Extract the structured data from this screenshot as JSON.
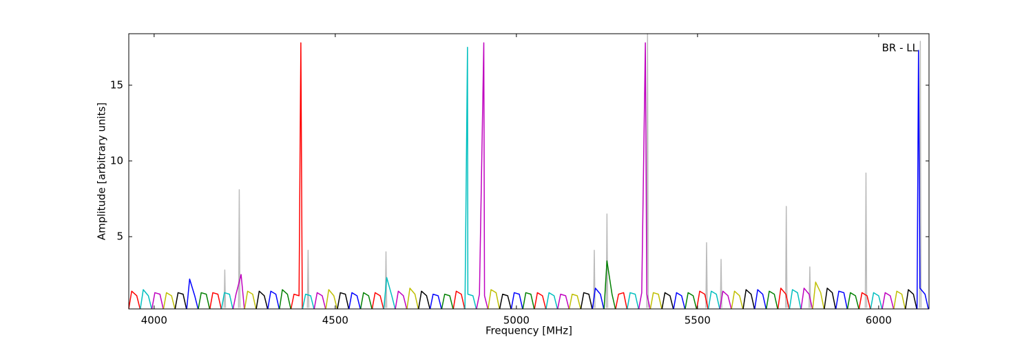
{
  "chart_data": {
    "type": "line",
    "xlabel": "Frequency [MHz]",
    "ylabel": "Amplitude [arbitrary units]",
    "annotation": "BR - LL",
    "xlim": [
      3930,
      6139
    ],
    "ylim": [
      0.23,
      18.4
    ],
    "xticks": [
      4000,
      4500,
      5000,
      5500,
      6000
    ],
    "yticks": [
      5,
      10,
      15
    ],
    "grid": false,
    "series": [
      {
        "color": "#bbbbbb",
        "x": [
          4193,
          4195,
          4197,
          null,
          4233,
          4235,
          4237,
          null,
          4423,
          4425,
          4427,
          null,
          4638,
          4640,
          4642,
          null,
          5213,
          5215,
          5217,
          null,
          5248,
          5250,
          5252,
          null,
          5360,
          5362,
          5364,
          null,
          5523,
          5525,
          5527,
          null,
          5563,
          5565,
          5567,
          null,
          5743,
          5745,
          5747,
          null,
          5808,
          5810,
          5812,
          null,
          5963,
          5965,
          5967,
          null,
          6113,
          6115,
          6117
        ],
        "values": [
          0.3,
          2.8,
          0.3,
          null,
          0.3,
          8.1,
          0.3,
          null,
          0.3,
          4.1,
          0.3,
          null,
          0.3,
          4.0,
          0.3,
          null,
          0.3,
          4.1,
          0.3,
          null,
          0.3,
          6.5,
          0.3,
          null,
          0.3,
          18.4,
          0.3,
          null,
          0.3,
          4.6,
          0.3,
          null,
          0.3,
          3.5,
          0.3,
          null,
          0.3,
          7.0,
          0.3,
          null,
          0.3,
          3.0,
          0.3,
          null,
          0.3,
          9.2,
          0.3,
          null,
          0.3,
          17.9,
          0.3
        ]
      },
      {
        "color": "#ff0000",
        "x": [
          3930,
          3938,
          3952,
          3961,
          null,
          4154,
          4162,
          4176,
          4185,
          null,
          4378,
          4386,
          4400,
          4405,
          4409,
          null,
          4602,
          4610,
          4624,
          4633,
          null,
          4826,
          4834,
          4848,
          4857,
          null,
          5050,
          5058,
          5072,
          5081,
          null,
          5274,
          5282,
          5296,
          5305,
          null,
          5498,
          5506,
          5520,
          5529,
          null,
          5722,
          5730,
          5744,
          5753,
          null,
          5946,
          5954,
          5968,
          5977
        ],
        "values": [
          0.25,
          1.4,
          1.1,
          0.25,
          null,
          0.25,
          1.3,
          1.2,
          0.25,
          null,
          0.25,
          1.2,
          1.1,
          17.8,
          0.25,
          null,
          0.25,
          1.3,
          1.1,
          0.25,
          null,
          0.25,
          1.4,
          1.2,
          0.25,
          null,
          0.25,
          1.3,
          1.1,
          0.25,
          null,
          0.25,
          1.2,
          1.3,
          0.25,
          null,
          0.25,
          1.4,
          1.2,
          0.25,
          null,
          0.25,
          1.6,
          1.2,
          0.25,
          null,
          0.25,
          1.3,
          1.1,
          0.25
        ]
      },
      {
        "color": "#00bfbf",
        "x": [
          3962,
          3970,
          3984,
          3993,
          null,
          4186,
          4194,
          4208,
          4217,
          null,
          4410,
          4418,
          4432,
          4441,
          null,
          4634,
          4642,
          4656,
          4665,
          null,
          4858,
          4865,
          4866,
          4880,
          4889,
          null,
          5082,
          5090,
          5104,
          5113,
          null,
          5306,
          5314,
          5328,
          5337,
          null,
          5530,
          5538,
          5552,
          5561,
          null,
          5754,
          5762,
          5776,
          5785,
          null,
          5978,
          5986,
          6000,
          6009
        ],
        "values": [
          0.25,
          1.5,
          1.1,
          0.25,
          null,
          0.25,
          1.3,
          1.2,
          0.25,
          null,
          0.25,
          1.2,
          1.1,
          0.25,
          null,
          0.25,
          2.3,
          1.1,
          0.25,
          null,
          0.25,
          17.5,
          1.2,
          1.1,
          0.25,
          null,
          0.25,
          1.3,
          1.1,
          0.25,
          null,
          0.25,
          1.3,
          1.2,
          0.25,
          null,
          0.25,
          1.4,
          1.2,
          0.25,
          null,
          0.25,
          1.5,
          1.3,
          0.25,
          null,
          0.25,
          1.3,
          1.1,
          0.25
        ]
      },
      {
        "color": "#bf00bf",
        "x": [
          3994,
          4002,
          4016,
          4025,
          null,
          4218,
          4226,
          4240,
          4249,
          null,
          4442,
          4450,
          4464,
          4473,
          null,
          4666,
          4674,
          4688,
          4697,
          null,
          4890,
          4898,
          4910,
          4912,
          4921,
          null,
          5114,
          5122,
          5136,
          5145,
          null,
          5338,
          5346,
          5356,
          5360,
          5369,
          null,
          5562,
          5570,
          5584,
          5593,
          null,
          5786,
          5794,
          5808,
          5817,
          null,
          6010,
          6018,
          6032,
          6041
        ],
        "values": [
          0.25,
          1.3,
          1.2,
          0.25,
          null,
          0.25,
          1.2,
          2.5,
          0.25,
          null,
          0.25,
          1.3,
          1.1,
          0.25,
          null,
          0.25,
          1.4,
          1.1,
          0.25,
          null,
          0.25,
          1.2,
          17.8,
          1.1,
          0.25,
          null,
          0.25,
          1.2,
          1.1,
          0.25,
          null,
          0.25,
          1.3,
          17.8,
          1.2,
          0.25,
          null,
          0.25,
          1.4,
          1.1,
          0.25,
          null,
          0.25,
          1.6,
          1.2,
          0.25,
          null,
          0.25,
          1.3,
          1.1,
          0.25
        ]
      },
      {
        "color": "#bfbf00",
        "x": [
          4026,
          4034,
          4048,
          4057,
          null,
          4250,
          4258,
          4272,
          4281,
          null,
          4474,
          4482,
          4496,
          4505,
          null,
          4698,
          4706,
          4720,
          4729,
          null,
          4922,
          4930,
          4944,
          4953,
          null,
          5146,
          5154,
          5168,
          5177,
          null,
          5370,
          5378,
          5392,
          5401,
          null,
          5594,
          5602,
          5616,
          5625,
          null,
          5818,
          5826,
          5840,
          5849,
          null,
          6042,
          6050,
          6064,
          6073
        ],
        "values": [
          0.25,
          1.3,
          1.1,
          0.25,
          null,
          0.25,
          1.4,
          1.2,
          0.25,
          null,
          0.25,
          1.5,
          1.1,
          0.25,
          null,
          0.25,
          1.6,
          1.2,
          0.25,
          null,
          0.25,
          1.5,
          1.3,
          0.25,
          null,
          0.25,
          1.2,
          1.1,
          0.25,
          null,
          0.25,
          1.3,
          1.2,
          0.25,
          null,
          0.25,
          1.4,
          1.1,
          0.25,
          null,
          0.25,
          2.0,
          1.3,
          0.25,
          null,
          0.25,
          1.4,
          1.2,
          0.25
        ]
      },
      {
        "color": "#000000",
        "x": [
          4058,
          4066,
          4080,
          4089,
          null,
          4282,
          4290,
          4304,
          4313,
          null,
          4506,
          4514,
          4528,
          4537,
          null,
          4730,
          4738,
          4752,
          4761,
          null,
          4954,
          4962,
          4976,
          4985,
          null,
          5178,
          5186,
          5200,
          5209,
          null,
          5402,
          5410,
          5424,
          5433,
          null,
          5626,
          5634,
          5648,
          5657,
          null,
          5850,
          5858,
          5872,
          5881,
          null,
          6074,
          6082,
          6096,
          6105
        ],
        "values": [
          0.25,
          1.3,
          1.2,
          0.25,
          null,
          0.25,
          1.4,
          1.1,
          0.25,
          null,
          0.25,
          1.3,
          1.2,
          0.25,
          null,
          0.25,
          1.4,
          1.1,
          0.25,
          null,
          0.25,
          1.2,
          1.1,
          0.25,
          null,
          0.25,
          1.3,
          1.2,
          0.25,
          null,
          0.25,
          1.3,
          1.1,
          0.25,
          null,
          0.25,
          1.5,
          1.2,
          0.25,
          null,
          0.25,
          1.6,
          1.3,
          0.25,
          null,
          0.25,
          1.5,
          1.2,
          0.25
        ]
      },
      {
        "color": "#0000ff",
        "x": [
          4090,
          4098,
          4112,
          4121,
          null,
          4314,
          4322,
          4336,
          4345,
          null,
          4538,
          4546,
          4560,
          4569,
          null,
          4762,
          4770,
          4784,
          4793,
          null,
          4986,
          4994,
          5008,
          5017,
          null,
          5210,
          5218,
          5232,
          5241,
          null,
          5434,
          5442,
          5456,
          5465,
          null,
          5658,
          5666,
          5680,
          5689,
          null,
          5882,
          5890,
          5904,
          5913,
          null,
          6106,
          6110,
          6114,
          6128,
          6137
        ],
        "values": [
          0.25,
          2.2,
          1.1,
          0.25,
          null,
          0.25,
          1.4,
          1.2,
          0.25,
          null,
          0.25,
          1.3,
          1.1,
          0.25,
          null,
          0.25,
          1.2,
          1.1,
          0.25,
          null,
          0.25,
          1.3,
          1.2,
          0.25,
          null,
          0.25,
          1.6,
          1.2,
          0.25,
          null,
          0.25,
          1.3,
          1.1,
          0.25,
          null,
          0.25,
          1.5,
          1.2,
          0.25,
          null,
          0.25,
          1.4,
          1.3,
          0.25,
          null,
          0.25,
          17.3,
          1.6,
          1.2,
          0.25
        ]
      },
      {
        "color": "#008000",
        "x": [
          4122,
          4130,
          4144,
          4153,
          null,
          4346,
          4354,
          4368,
          4377,
          null,
          4570,
          4578,
          4592,
          4601,
          null,
          4794,
          4802,
          4816,
          4825,
          null,
          5018,
          5026,
          5040,
          5049,
          null,
          5242,
          5250,
          5264,
          5273,
          null,
          5466,
          5474,
          5488,
          5497,
          null,
          5690,
          5698,
          5712,
          5721,
          null,
          5914,
          5922,
          5936,
          5945
        ],
        "values": [
          0.25,
          1.3,
          1.2,
          0.25,
          null,
          0.25,
          1.5,
          1.2,
          0.25,
          null,
          0.25,
          1.3,
          1.1,
          0.25,
          null,
          0.25,
          1.2,
          1.1,
          0.25,
          null,
          0.25,
          1.3,
          1.2,
          0.25,
          null,
          0.25,
          3.4,
          1.2,
          0.25,
          null,
          0.25,
          1.3,
          1.1,
          0.25,
          null,
          0.25,
          1.4,
          1.2,
          0.25,
          null,
          0.25,
          1.3,
          1.1,
          0.25
        ]
      }
    ]
  }
}
